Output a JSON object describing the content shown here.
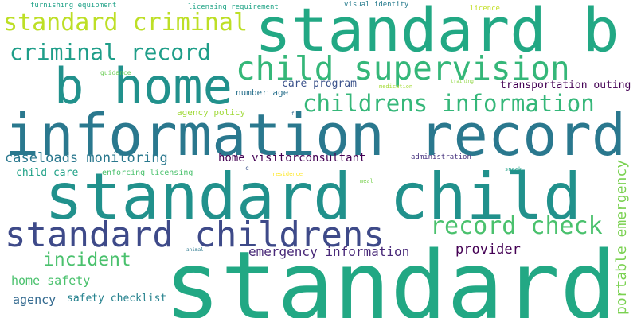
{
  "words": [
    {
      "text": "standard",
      "color": "#22a884"
    },
    {
      "text": "information record",
      "color": "#2a788e"
    },
    {
      "text": "standard child",
      "color": "#21918c"
    },
    {
      "text": "standard b",
      "color": "#22a884"
    },
    {
      "text": "b home",
      "color": "#21918c"
    },
    {
      "text": "child supervision",
      "color": "#35b779"
    },
    {
      "text": "standard childrens",
      "color": "#3e4a89"
    },
    {
      "text": "childrens information",
      "color": "#35b779"
    },
    {
      "text": "standard criminal",
      "color": "#bddf26"
    },
    {
      "text": "criminal record",
      "color": "#1f9e89"
    },
    {
      "text": "record check",
      "color": "#4ac16d"
    },
    {
      "text": "incident",
      "color": "#4ac16d"
    },
    {
      "text": "caseloads monitoring",
      "color": "#2a788e"
    },
    {
      "text": "portable emergency",
      "color": "#7ad151"
    },
    {
      "text": "emergency information",
      "color": "#482878"
    },
    {
      "text": "provider",
      "color": "#440154"
    },
    {
      "text": "home visitorconsultant",
      "color": "#440154"
    },
    {
      "text": "home safety",
      "color": "#4ac16d"
    },
    {
      "text": "agency",
      "color": "#31688e"
    },
    {
      "text": "safety checklist",
      "color": "#26828e"
    },
    {
      "text": "child care",
      "color": "#1fa187"
    },
    {
      "text": "care program",
      "color": "#3b528b"
    },
    {
      "text": "transportation outing",
      "color": "#440154"
    },
    {
      "text": "number age",
      "color": "#2c728e"
    },
    {
      "text": "agency policy",
      "color": "#a0da39"
    },
    {
      "text": "enforcing licensing",
      "color": "#4ac16d"
    },
    {
      "text": "furnishing equipment",
      "color": "#1fa187"
    },
    {
      "text": "licensing requirement",
      "color": "#20a486"
    },
    {
      "text": "visual identity",
      "color": "#287c8e"
    },
    {
      "text": "licence",
      "color": "#c2df23"
    },
    {
      "text": "guidance",
      "color": "#6ece58"
    },
    {
      "text": "medication",
      "color": "#a5db36"
    },
    {
      "text": "training",
      "color": "#90d743"
    },
    {
      "text": "administration",
      "color": "#46327e"
    },
    {
      "text": "snack",
      "color": "#1fa187"
    },
    {
      "text": "residence",
      "color": "#fde725"
    },
    {
      "text": "meal",
      "color": "#7ad151"
    },
    {
      "text": "animal",
      "color": "#2a788e"
    },
    {
      "text": "c",
      "color": "#3b528b"
    },
    {
      "text": "f",
      "color": "#31688e"
    }
  ]
}
